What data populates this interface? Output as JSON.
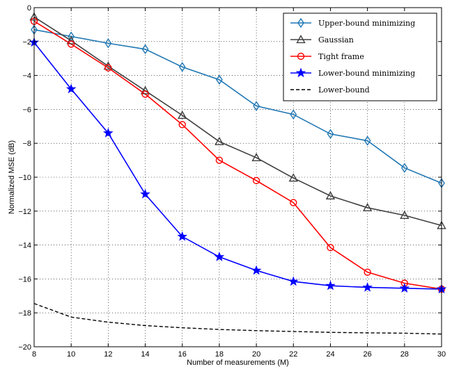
{
  "chart_data": {
    "type": "line",
    "title": "",
    "xlabel": "Number of measurements (M)",
    "ylabel": "Normalized MSE (dB)",
    "xlim": [
      8,
      30
    ],
    "ylim": [
      -20,
      0
    ],
    "xticks": [
      8,
      10,
      12,
      14,
      16,
      18,
      20,
      22,
      24,
      26,
      28,
      30
    ],
    "yticks": [
      0,
      -2,
      -4,
      -6,
      -8,
      -10,
      -12,
      -14,
      -16,
      -18,
      -20
    ],
    "grid": true,
    "legend_position": "top-right",
    "x": [
      8,
      10,
      12,
      14,
      16,
      18,
      20,
      22,
      24,
      26,
      28,
      30
    ],
    "series": [
      {
        "name": "Upper-bound minimizing",
        "color": "#1f77b4",
        "marker": "diamond",
        "dash": "solid",
        "values": [
          -1.3,
          -1.7,
          -2.1,
          -2.45,
          -3.5,
          -4.25,
          -5.8,
          -6.3,
          -7.45,
          -7.85,
          -9.45,
          -10.35
        ]
      },
      {
        "name": "Gaussian",
        "color": "#404040",
        "marker": "triangle",
        "dash": "solid",
        "values": [
          -0.55,
          -1.95,
          -3.45,
          -4.9,
          -6.35,
          -7.9,
          -8.85,
          -10.05,
          -11.1,
          -11.8,
          -12.25,
          -12.85
        ]
      },
      {
        "name": "Tight frame",
        "color": "#ff0000",
        "marker": "circle",
        "dash": "solid",
        "values": [
          -0.8,
          -2.15,
          -3.55,
          -5.1,
          -6.9,
          -9.0,
          -10.2,
          -11.5,
          -14.15,
          -15.6,
          -16.25,
          -16.6
        ]
      },
      {
        "name": "Lower-bound minimizing",
        "color": "#0000ff",
        "marker": "star",
        "dash": "solid",
        "values": [
          -2.05,
          -4.8,
          -7.4,
          -11.0,
          -13.5,
          -14.7,
          -15.5,
          -16.15,
          -16.4,
          -16.5,
          -16.55,
          -16.6
        ]
      },
      {
        "name": "Lower-bound",
        "color": "#000000",
        "marker": "none",
        "dash": "dashed",
        "values": [
          -17.45,
          -18.25,
          -18.55,
          -18.75,
          -18.88,
          -18.98,
          -19.05,
          -19.1,
          -19.15,
          -19.18,
          -19.2,
          -19.25
        ]
      }
    ]
  }
}
